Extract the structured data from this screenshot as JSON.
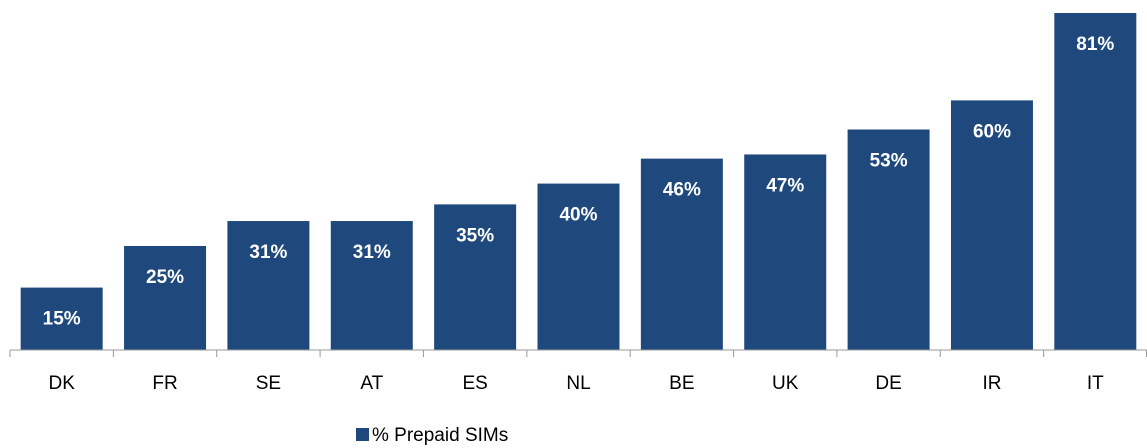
{
  "chart_data": {
    "type": "bar",
    "categories": [
      "DK",
      "FR",
      "SE",
      "AT",
      "ES",
      "NL",
      "BE",
      "UK",
      "DE",
      "IR",
      "IT"
    ],
    "series": [
      {
        "name": "% Prepaid SIMs",
        "color": "#1f497d",
        "values": [
          15,
          25,
          31,
          31,
          35,
          40,
          46,
          47,
          53,
          60,
          81
        ],
        "value_labels": [
          "15%",
          "25%",
          "31%",
          "31%",
          "35%",
          "40%",
          "46%",
          "47%",
          "53%",
          "60%",
          "81%"
        ]
      }
    ],
    "legend": "bottom"
  }
}
